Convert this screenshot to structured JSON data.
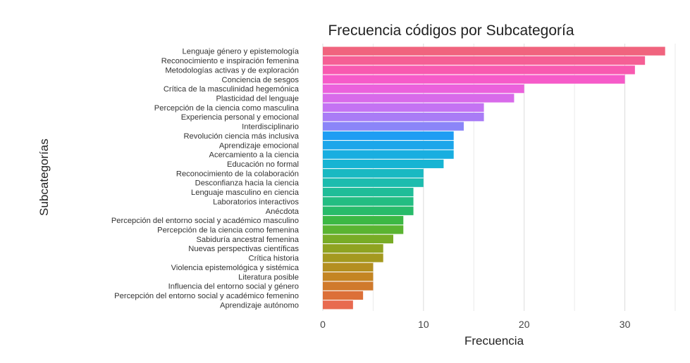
{
  "chart_data": {
    "type": "bar",
    "orientation": "horizontal",
    "title": "Frecuencia códigos por Subcategoría",
    "xlabel": "Frecuencia",
    "ylabel": "Subcategorías",
    "xlim": [
      0,
      35
    ],
    "xticks": [
      0,
      10,
      20,
      30
    ],
    "grid": true,
    "categories": [
      "Lenguaje género y epistemología",
      "Reconocimiento e inspiración femenina",
      "Metodologías activas y de exploración",
      "Conciencia de sesgos",
      "Crítica de la masculinidad hegemónica",
      "Plasticidad del lenguaje",
      "Percepción de la ciencia como masculina",
      "Experiencia personal y emocional",
      "Interdisciplinario",
      "Revolución ciencia más inclusiva",
      "Aprendizaje emocional",
      "Acercamiento a la ciencia",
      "Educación no formal",
      "Reconocimiento de la colaboración",
      "Desconfianza hacia la ciencia",
      "Lenguaje masculino en ciencia",
      "Laboratorios interactivos",
      "Anécdota",
      "Percepción del entorno social y académico masculino",
      "Percepción de la ciencia como femenina",
      "Sabiduría ancestral femenina",
      "Nuevas perspectivas científicas",
      "Crítica historia",
      "Violencia epistemológica y sistémica",
      "Literatura posible",
      "Influencia del entorno social y género",
      "Percepción del entorno social y académico femenino",
      "Aprendizaje autónomo"
    ],
    "values": [
      34,
      32,
      31,
      30,
      20,
      19,
      16,
      16,
      14,
      13,
      13,
      13,
      12,
      10,
      10,
      9,
      9,
      9,
      8,
      8,
      7,
      6,
      6,
      5,
      5,
      5,
      4,
      3
    ],
    "colors": [
      "#f0647e",
      "#f55f95",
      "#f85ab0",
      "#f65bc9",
      "#eb61dc",
      "#d86aea",
      "#c473f3",
      "#a97cf6",
      "#8b85f8",
      "#1f9df3",
      "#1ca6ea",
      "#19aee0",
      "#17b4d3",
      "#19b9c2",
      "#1cbcae",
      "#1fbd98",
      "#23bd82",
      "#28bb6a",
      "#3cb844",
      "#5ab431",
      "#78ac26",
      "#8fa321",
      "#a4991f",
      "#b48f20",
      "#c48523",
      "#d07a2c",
      "#dc7038",
      "#e86a50"
    ]
  }
}
